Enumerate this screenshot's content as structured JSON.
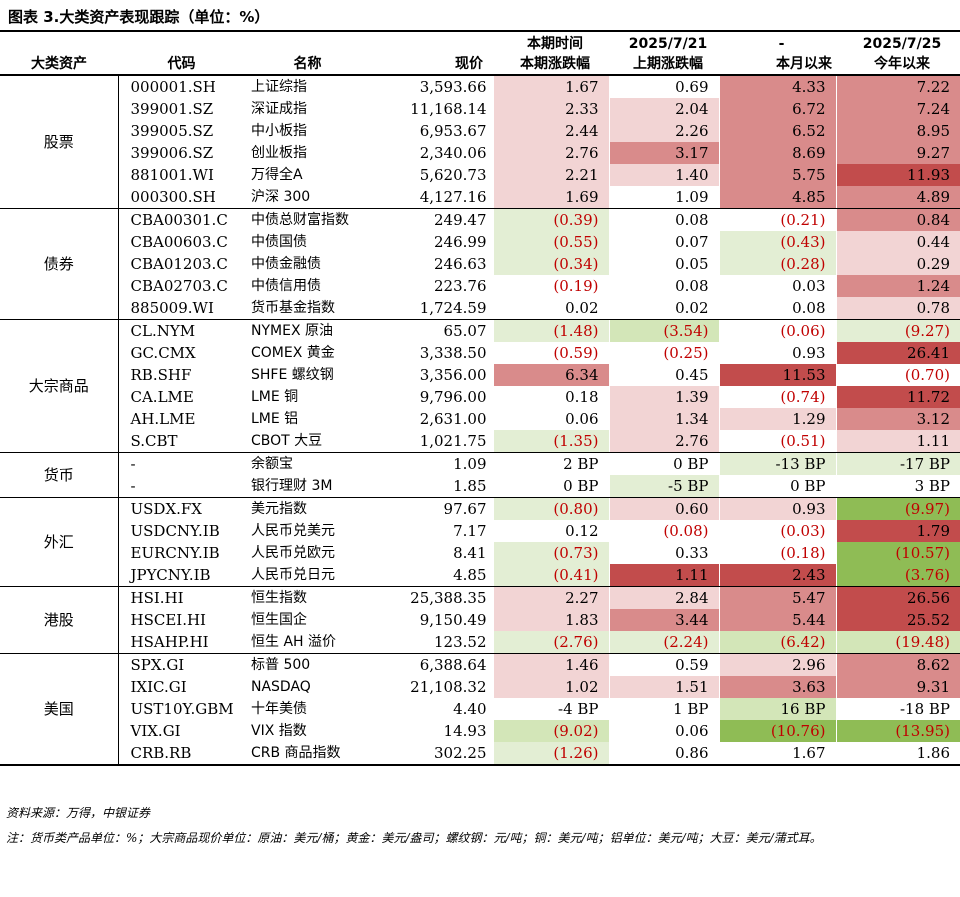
{
  "title": "图表 3.大类资产表现跟踪（单位：%）",
  "headers": {
    "row1": [
      "",
      "",
      "",
      "",
      "本期时间",
      "2025/7/21",
      "-",
      "2025/7/25"
    ],
    "row2": [
      "大类资产",
      "代码",
      "名称",
      "现价",
      "本期涨跌幅",
      "上期涨跌幅",
      "本月以来",
      "今年以来"
    ]
  },
  "groups": [
    {
      "category": "股票",
      "rows": [
        {
          "code": "000001.SH",
          "name": "上证综指",
          "price": "3,593.66",
          "cur": "1.67",
          "prev": "0.69",
          "mtd": "4.33",
          "ytd": "7.22",
          "bg": [
            "#f2d4d4",
            "#ffffff",
            "#d98b8b",
            "#d98b8b"
          ]
        },
        {
          "code": "399001.SZ",
          "name": "深证成指",
          "price": "11,168.14",
          "cur": "2.33",
          "prev": "2.04",
          "mtd": "6.72",
          "ytd": "7.24",
          "bg": [
            "#f2d4d4",
            "#f2d4d4",
            "#d98b8b",
            "#d98b8b"
          ]
        },
        {
          "code": "399005.SZ",
          "name": "中小板指",
          "price": "6,953.67",
          "cur": "2.44",
          "prev": "2.26",
          "mtd": "6.52",
          "ytd": "8.95",
          "bg": [
            "#f2d4d4",
            "#f2d4d4",
            "#d98b8b",
            "#d98b8b"
          ]
        },
        {
          "code": "399006.SZ",
          "name": "创业板指",
          "price": "2,340.06",
          "cur": "2.76",
          "prev": "3.17",
          "mtd": "8.69",
          "ytd": "9.27",
          "bg": [
            "#f2d4d4",
            "#d98b8b",
            "#d98b8b",
            "#d98b8b"
          ]
        },
        {
          "code": "881001.WI",
          "name": "万得全A",
          "price": "5,620.73",
          "cur": "2.21",
          "prev": "1.40",
          "mtd": "5.75",
          "ytd": "11.93",
          "bg": [
            "#f2d4d4",
            "#f2d4d4",
            "#d98b8b",
            "#c24c4c"
          ]
        },
        {
          "code": "000300.SH",
          "name": "沪深 300",
          "price": "4,127.16",
          "cur": "1.69",
          "prev": "1.09",
          "mtd": "4.85",
          "ytd": "4.89",
          "bg": [
            "#f2d4d4",
            "#ffffff",
            "#d98b8b",
            "#d98b8b"
          ]
        }
      ]
    },
    {
      "category": "债券",
      "rows": [
        {
          "code": "CBA00301.C",
          "name": "中债总财富指数",
          "price": "249.47",
          "cur": "(0.39)",
          "prev": "0.08",
          "mtd": "(0.21)",
          "ytd": "0.84",
          "bg": [
            "#e3eed4",
            "#ffffff",
            "#ffffff",
            "#d98b8b"
          ]
        },
        {
          "code": "CBA00603.C",
          "name": "中债国债",
          "price": "246.99",
          "cur": "(0.55)",
          "prev": "0.07",
          "mtd": "(0.43)",
          "ytd": "0.44",
          "bg": [
            "#e3eed4",
            "#ffffff",
            "#e3eed4",
            "#f2d4d4"
          ]
        },
        {
          "code": "CBA01203.C",
          "name": "中债金融债",
          "price": "246.63",
          "cur": "(0.34)",
          "prev": "0.05",
          "mtd": "(0.28)",
          "ytd": "0.29",
          "bg": [
            "#e3eed4",
            "#ffffff",
            "#e3eed4",
            "#f2d4d4"
          ]
        },
        {
          "code": "CBA02703.C",
          "name": "中债信用债",
          "price": "223.76",
          "cur": "(0.19)",
          "prev": "0.08",
          "mtd": "0.03",
          "ytd": "1.24",
          "bg": [
            "#ffffff",
            "#ffffff",
            "#ffffff",
            "#d98b8b"
          ]
        },
        {
          "code": "885009.WI",
          "name": "货币基金指数",
          "price": "1,724.59",
          "cur": "0.02",
          "prev": "0.02",
          "mtd": "0.08",
          "ytd": "0.78",
          "bg": [
            "#ffffff",
            "#ffffff",
            "#ffffff",
            "#f2d4d4"
          ]
        }
      ]
    },
    {
      "category": "大宗商品",
      "rows": [
        {
          "code": "CL.NYM",
          "name": "NYMEX 原油",
          "price": "65.07",
          "cur": "(1.48)",
          "prev": "(3.54)",
          "mtd": "(0.06)",
          "ytd": "(9.27)",
          "bg": [
            "#e3eed4",
            "#d3e6b8",
            "#ffffff",
            "#e3eed4"
          ]
        },
        {
          "code": "GC.CMX",
          "name": "COMEX 黄金",
          "price": "3,338.50",
          "cur": "(0.59)",
          "prev": "(0.25)",
          "mtd": "0.93",
          "ytd": "26.41",
          "bg": [
            "#ffffff",
            "#ffffff",
            "#ffffff",
            "#c24c4c"
          ]
        },
        {
          "code": "RB.SHF",
          "name": "SHFE 螺纹钢",
          "price": "3,356.00",
          "cur": "6.34",
          "prev": "0.45",
          "mtd": "11.53",
          "ytd": "(0.70)",
          "bg": [
            "#d98b8b",
            "#ffffff",
            "#c24c4c",
            "#ffffff"
          ]
        },
        {
          "code": "CA.LME",
          "name": "LME 铜",
          "price": "9,796.00",
          "cur": "0.18",
          "prev": "1.39",
          "mtd": "(0.74)",
          "ytd": "11.72",
          "bg": [
            "#ffffff",
            "#f2d4d4",
            "#ffffff",
            "#c24c4c"
          ]
        },
        {
          "code": "AH.LME",
          "name": "LME 铝",
          "price": "2,631.00",
          "cur": "0.06",
          "prev": "1.34",
          "mtd": "1.29",
          "ytd": "3.12",
          "bg": [
            "#ffffff",
            "#f2d4d4",
            "#f2d4d4",
            "#d98b8b"
          ]
        },
        {
          "code": "S.CBT",
          "name": "CBOT 大豆",
          "price": "1,021.75",
          "cur": "(1.35)",
          "prev": "2.76",
          "mtd": "(0.51)",
          "ytd": "1.11",
          "bg": [
            "#e3eed4",
            "#f2d4d4",
            "#ffffff",
            "#f2d4d4"
          ]
        }
      ]
    },
    {
      "category": "货币",
      "rows": [
        {
          "code": "-",
          "name": "余额宝",
          "price": "1.09",
          "cur": "2 BP",
          "prev": "0 BP",
          "mtd": "-13 BP",
          "ytd": "-17 BP",
          "bg": [
            "#ffffff",
            "#ffffff",
            "#e3eed4",
            "#e3eed4"
          ]
        },
        {
          "code": "-",
          "name": "银行理财 3M",
          "price": "1.85",
          "cur": "0 BP",
          "prev": "-5 BP",
          "mtd": "0 BP",
          "ytd": "3 BP",
          "bg": [
            "#ffffff",
            "#e3eed4",
            "#ffffff",
            "#ffffff"
          ]
        }
      ]
    },
    {
      "category": "外汇",
      "rows": [
        {
          "code": "USDX.FX",
          "name": "美元指数",
          "price": "97.67",
          "cur": "(0.80)",
          "prev": "0.60",
          "mtd": "0.93",
          "ytd": "(9.97)",
          "bg": [
            "#e3eed4",
            "#f2d4d4",
            "#f2d4d4",
            "#8fbc55"
          ]
        },
        {
          "code": "USDCNY.IB",
          "name": "人民币兑美元",
          "price": "7.17",
          "cur": "0.12",
          "prev": "(0.08)",
          "mtd": "(0.03)",
          "ytd": "1.79",
          "bg": [
            "#ffffff",
            "#ffffff",
            "#ffffff",
            "#c24c4c"
          ]
        },
        {
          "code": "EURCNY.IB",
          "name": "人民币兑欧元",
          "price": "8.41",
          "cur": "(0.73)",
          "prev": "0.33",
          "mtd": "(0.18)",
          "ytd": "(10.57)",
          "bg": [
            "#e3eed4",
            "#ffffff",
            "#ffffff",
            "#8fbc55"
          ]
        },
        {
          "code": "JPYCNY.IB",
          "name": "人民币兑日元",
          "price": "4.85",
          "cur": "(0.41)",
          "prev": "1.11",
          "mtd": "2.43",
          "ytd": "(3.76)",
          "bg": [
            "#e3eed4",
            "#c24c4c",
            "#c24c4c",
            "#8fbc55"
          ]
        }
      ]
    },
    {
      "category": "港股",
      "rows": [
        {
          "code": "HSI.HI",
          "name": "恒生指数",
          "price": "25,388.35",
          "cur": "2.27",
          "prev": "2.84",
          "mtd": "5.47",
          "ytd": "26.56",
          "bg": [
            "#f2d4d4",
            "#f2d4d4",
            "#d98b8b",
            "#c24c4c"
          ]
        },
        {
          "code": "HSCEI.HI",
          "name": "恒生国企",
          "price": "9,150.49",
          "cur": "1.83",
          "prev": "3.44",
          "mtd": "5.44",
          "ytd": "25.52",
          "bg": [
            "#f2d4d4",
            "#d98b8b",
            "#d98b8b",
            "#c24c4c"
          ]
        },
        {
          "code": "HSAHP.HI",
          "name": "恒生 AH 溢价",
          "price": "123.52",
          "cur": "(2.76)",
          "prev": "(2.24)",
          "mtd": "(6.42)",
          "ytd": "(19.48)",
          "bg": [
            "#e3eed4",
            "#e3eed4",
            "#d3e6b8",
            "#d3e6b8"
          ]
        }
      ]
    },
    {
      "category": "美国",
      "rows": [
        {
          "code": "SPX.GI",
          "name": "标普 500",
          "price": "6,388.64",
          "cur": "1.46",
          "prev": "0.59",
          "mtd": "2.96",
          "ytd": "8.62",
          "bg": [
            "#f2d4d4",
            "#ffffff",
            "#f2d4d4",
            "#d98b8b"
          ]
        },
        {
          "code": "IXIC.GI",
          "name": "NASDAQ",
          "price": "21,108.32",
          "cur": "1.02",
          "prev": "1.51",
          "mtd": "3.63",
          "ytd": "9.31",
          "bg": [
            "#f2d4d4",
            "#f2d4d4",
            "#d98b8b",
            "#d98b8b"
          ]
        },
        {
          "code": "UST10Y.GBM",
          "name": "十年美债",
          "price": "4.40",
          "cur": "-4 BP",
          "prev": "1 BP",
          "mtd": "16 BP",
          "ytd": "-18 BP",
          "bg": [
            "#ffffff",
            "#ffffff",
            "#d3e6b8",
            "#ffffff"
          ]
        },
        {
          "code": "VIX.GI",
          "name": "VIX 指数",
          "price": "14.93",
          "cur": "(9.02)",
          "prev": "0.06",
          "mtd": "(10.76)",
          "ytd": "(13.95)",
          "bg": [
            "#d3e6b8",
            "#ffffff",
            "#8fbc55",
            "#8fbc55"
          ]
        },
        {
          "code": "CRB.RB",
          "name": "CRB 商品指数",
          "price": "302.25",
          "cur": "(1.26)",
          "prev": "0.86",
          "mtd": "1.67",
          "ytd": "1.86",
          "bg": [
            "#e3eed4",
            "#ffffff",
            "#ffffff",
            "#ffffff"
          ]
        }
      ]
    }
  ],
  "source": "资料来源：万得，中银证券",
  "note": "注：货币类产品单位：%；大宗商品现价单位：原油：美元/桶；黄金：美元/盎司；螺纹钢：元/吨；铜：美元/吨；铝单位：美元/吨；大豆：美元/蒲式耳。"
}
